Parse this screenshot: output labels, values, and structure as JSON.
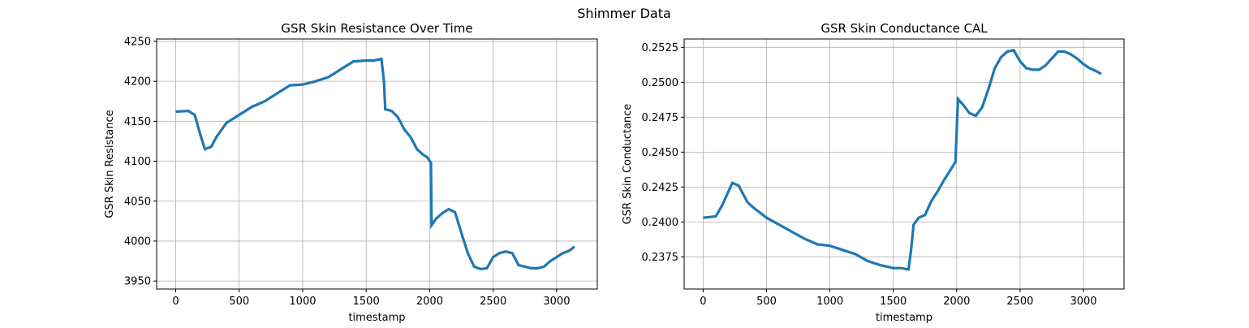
{
  "figure": {
    "suptitle": "Shimmer Data",
    "line_color": "#1f77b4",
    "grid_color": "#b0b0b0"
  },
  "chart_data": [
    {
      "type": "line",
      "title": "GSR Skin Resistance Over Time",
      "xlabel": "timestamp",
      "ylabel": "GSR Skin Resistance",
      "xlim": [
        -150,
        3320
      ],
      "ylim": [
        3940,
        4253
      ],
      "xticks": [
        0,
        500,
        1000,
        1500,
        2000,
        2500,
        3000
      ],
      "yticks": [
        3950,
        4000,
        4050,
        4100,
        4150,
        4200,
        4250
      ],
      "grid": true,
      "series": [
        {
          "x": [
            0,
            100,
            150,
            200,
            230,
            280,
            320,
            400,
            500,
            600,
            700,
            800,
            900,
            1000,
            1100,
            1200,
            1300,
            1400,
            1500,
            1560,
            1620,
            1640,
            1650,
            1700,
            1750,
            1800,
            1850,
            1900,
            1950,
            1980,
            2010,
            2015,
            2050,
            2100,
            2150,
            2200,
            2250,
            2300,
            2350,
            2400,
            2450,
            2500,
            2550,
            2600,
            2650,
            2700,
            2800,
            2850,
            2900,
            2950,
            3000,
            3050,
            3100,
            3140
          ],
          "y": [
            4162,
            4163,
            4158,
            4130,
            4115,
            4118,
            4130,
            4148,
            4158,
            4168,
            4175,
            4185,
            4195,
            4196,
            4200,
            4205,
            4215,
            4225,
            4226,
            4226,
            4228,
            4200,
            4165,
            4163,
            4155,
            4140,
            4130,
            4115,
            4108,
            4105,
            4098,
            4020,
            4028,
            4035,
            4040,
            4036,
            4010,
            3985,
            3968,
            3965,
            3966,
            3980,
            3985,
            3987,
            3985,
            3970,
            3966,
            3966,
            3968,
            3975,
            3980,
            3985,
            3988,
            3993
          ]
        }
      ]
    },
    {
      "type": "line",
      "title": "GSR Skin Conductance CAL",
      "xlabel": "timestamp",
      "ylabel": "GSR Skin Conductance",
      "xlim": [
        -150,
        3320
      ],
      "ylim": [
        0.2352,
        0.2531
      ],
      "xticks": [
        0,
        500,
        1000,
        1500,
        2000,
        2500,
        3000
      ],
      "yticks": [
        0.2375,
        0.24,
        0.2425,
        0.245,
        0.2475,
        0.25,
        0.2525
      ],
      "ytick_labels": [
        "0.2375",
        "0.2400",
        "0.2425",
        "0.2450",
        "0.2475",
        "0.2500",
        "0.2525"
      ],
      "grid": true,
      "series": [
        {
          "x": [
            0,
            100,
            150,
            200,
            230,
            280,
            350,
            400,
            500,
            600,
            700,
            800,
            900,
            1000,
            1100,
            1200,
            1300,
            1400,
            1500,
            1560,
            1620,
            1640,
            1660,
            1700,
            1750,
            1800,
            1850,
            1900,
            1950,
            1990,
            2000,
            2010,
            2050,
            2100,
            2150,
            2200,
            2250,
            2300,
            2350,
            2400,
            2450,
            2500,
            2550,
            2600,
            2650,
            2700,
            2750,
            2800,
            2850,
            2900,
            2950,
            3000,
            3050,
            3100,
            3140
          ],
          "y": [
            0.2403,
            0.2404,
            0.2412,
            0.2422,
            0.2428,
            0.2426,
            0.2414,
            0.241,
            0.2403,
            0.2398,
            0.2393,
            0.2388,
            0.2384,
            0.2383,
            0.238,
            0.2377,
            0.2372,
            0.2369,
            0.2367,
            0.2367,
            0.2366,
            0.238,
            0.2398,
            0.2403,
            0.2405,
            0.2415,
            0.2422,
            0.243,
            0.2437,
            0.2443,
            0.2465,
            0.2488,
            0.2484,
            0.2478,
            0.2476,
            0.2482,
            0.2495,
            0.251,
            0.2518,
            0.2522,
            0.2523,
            0.2515,
            0.251,
            0.2509,
            0.2509,
            0.2512,
            0.2517,
            0.2522,
            0.2522,
            0.252,
            0.2517,
            0.2513,
            0.251,
            0.2508,
            0.2506
          ]
        }
      ]
    }
  ]
}
